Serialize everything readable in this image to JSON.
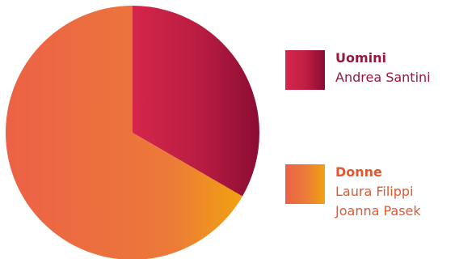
{
  "chart_data": {
    "type": "pie",
    "slices": [
      {
        "label": "Uomini",
        "value": 1,
        "members": [
          "Andrea Santini"
        ]
      },
      {
        "label": "Donne",
        "value": 2,
        "members": [
          "Laura Filippi",
          "Joanna Pasek"
        ]
      }
    ],
    "colors": {
      "Uomini": [
        "#d4264a",
        "#8b0c33"
      ],
      "Donne": [
        "#ec6146",
        "#f0a210"
      ]
    },
    "legend_position": "right"
  }
}
